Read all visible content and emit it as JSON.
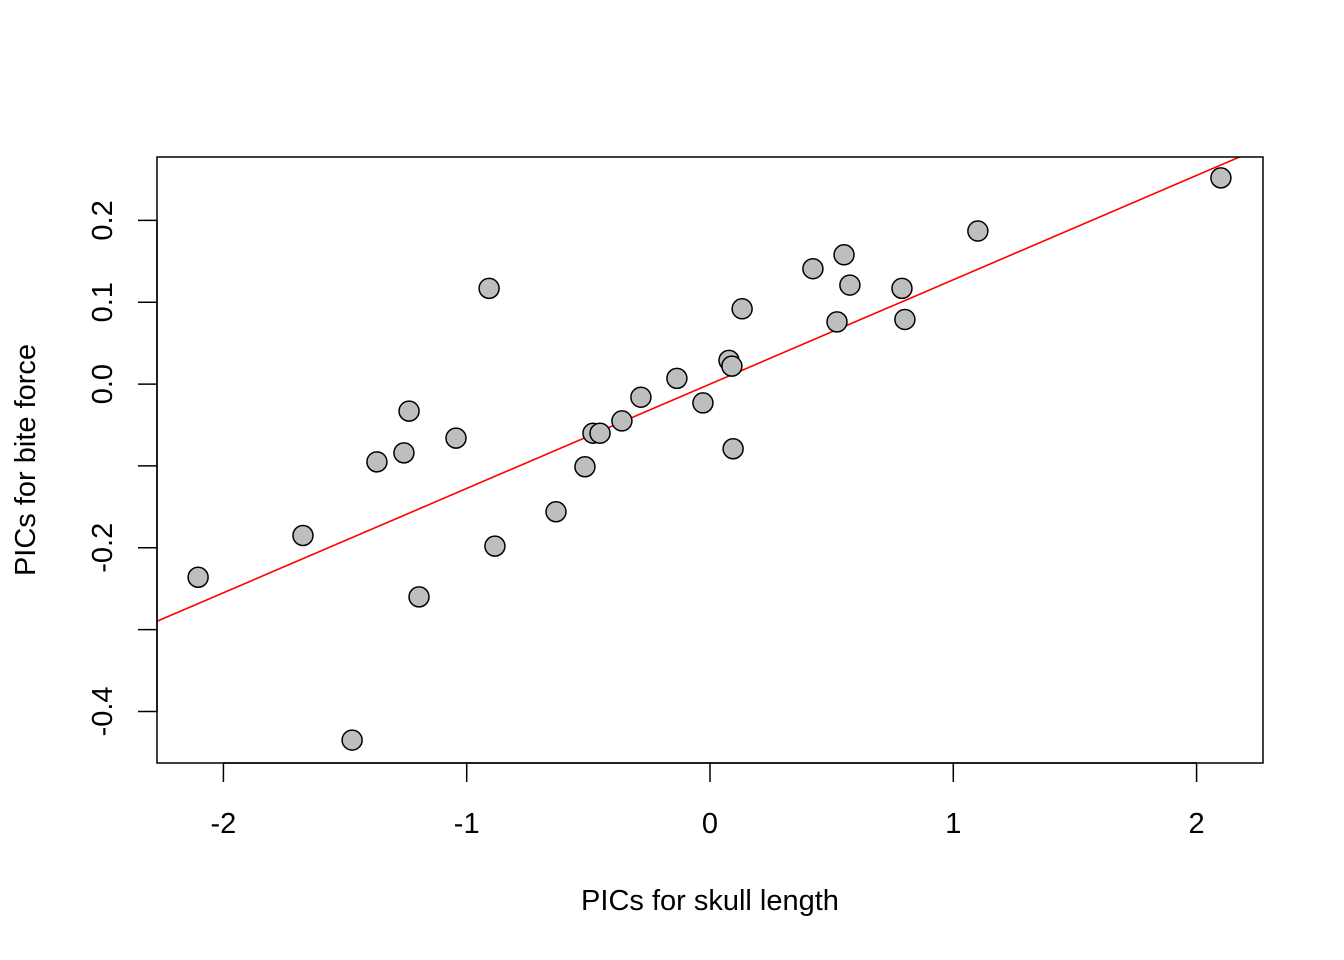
{
  "chart_data": {
    "type": "scatter",
    "xlabel": "PICs for skull length",
    "ylabel": "PICs for bite force",
    "xlim": [
      -2.273,
      2.273
    ],
    "ylim": [
      -0.463,
      0.2775
    ],
    "xticks": [
      -2,
      -1,
      0,
      1,
      2
    ],
    "xtick_labels": [
      "-2",
      "-1",
      "0",
      "1",
      "2"
    ],
    "yticks": [
      -0.4,
      -0.3,
      -0.2,
      -0.1,
      0.0,
      0.1,
      0.2
    ],
    "ytick_labels": [
      "-0.4",
      "",
      "-0.2",
      "",
      "0.0",
      "0.1",
      "0.2"
    ],
    "grid": false,
    "point_fill": "#bebebe",
    "point_stroke": "#000000",
    "line_color": "#ff0000",
    "regression_line": {
      "slope": 0.1275,
      "intercept": 0.0
    },
    "points": [
      {
        "x": -2.104,
        "y": -0.236
      },
      {
        "x": -1.673,
        "y": -0.185
      },
      {
        "x": -1.471,
        "y": -0.435
      },
      {
        "x": -1.369,
        "y": -0.095
      },
      {
        "x": -1.258,
        "y": -0.084
      },
      {
        "x": -1.237,
        "y": -0.033
      },
      {
        "x": -1.196,
        "y": -0.26
      },
      {
        "x": -1.044,
        "y": -0.066
      },
      {
        "x": -0.908,
        "y": 0.117
      },
      {
        "x": -0.884,
        "y": -0.198
      },
      {
        "x": -0.633,
        "y": -0.156
      },
      {
        "x": -0.514,
        "y": -0.101
      },
      {
        "x": -0.481,
        "y": -0.06
      },
      {
        "x": -0.452,
        "y": -0.06
      },
      {
        "x": -0.362,
        "y": -0.045
      },
      {
        "x": -0.284,
        "y": -0.016
      },
      {
        "x": -0.136,
        "y": 0.007
      },
      {
        "x": -0.029,
        "y": -0.023
      },
      {
        "x": 0.078,
        "y": 0.029
      },
      {
        "x": 0.09,
        "y": 0.022
      },
      {
        "x": 0.095,
        "y": -0.079
      },
      {
        "x": 0.132,
        "y": 0.092
      },
      {
        "x": 0.423,
        "y": 0.141
      },
      {
        "x": 0.522,
        "y": 0.076
      },
      {
        "x": 0.551,
        "y": 0.158
      },
      {
        "x": 0.575,
        "y": 0.121
      },
      {
        "x": 0.789,
        "y": 0.117
      },
      {
        "x": 0.801,
        "y": 0.079
      },
      {
        "x": 1.101,
        "y": 0.187
      },
      {
        "x": 2.1,
        "y": 0.252
      }
    ]
  }
}
